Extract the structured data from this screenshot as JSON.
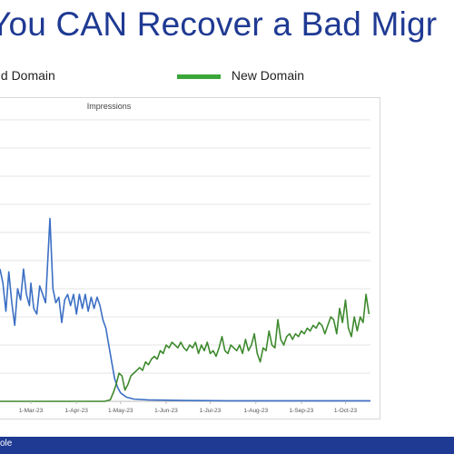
{
  "slide": {
    "title": "You CAN Recover a Bad Migr",
    "footer_text": "ole"
  },
  "legend": {
    "items": [
      {
        "label": "d Domain",
        "color": "#3b6fc4"
      },
      {
        "label": "New Domain",
        "color": "#3aa63a"
      }
    ]
  },
  "chart_data": {
    "type": "line",
    "title": "Impressions",
    "xlabel": "",
    "ylabel": "",
    "grid": true,
    "legend_position": "top",
    "x_ticks": [
      "1-Mar-23",
      "1-Apr-23",
      "1-May-23",
      "1-Jun-23",
      "1-Jul-23",
      "1-Aug-23",
      "1-Sep-23",
      "1-Oct-23"
    ],
    "x_range": [
      "2023-02-08",
      "2023-10-18"
    ],
    "y_range": [
      0,
      100
    ],
    "series": [
      {
        "name": "d Domain",
        "color": "#3b6fc4",
        "points": [
          [
            "2023-02-08",
            47
          ],
          [
            "2023-02-10",
            42
          ],
          [
            "2023-02-12",
            32
          ],
          [
            "2023-02-14",
            46
          ],
          [
            "2023-02-16",
            35
          ],
          [
            "2023-02-18",
            27
          ],
          [
            "2023-02-20",
            40
          ],
          [
            "2023-02-22",
            36
          ],
          [
            "2023-02-24",
            47
          ],
          [
            "2023-02-26",
            38
          ],
          [
            "2023-02-28",
            34
          ],
          [
            "2023-03-01",
            42
          ],
          [
            "2023-03-03",
            33
          ],
          [
            "2023-03-05",
            31
          ],
          [
            "2023-03-07",
            41
          ],
          [
            "2023-03-09",
            38
          ],
          [
            "2023-03-11",
            35
          ],
          [
            "2023-03-13",
            55
          ],
          [
            "2023-03-14",
            65
          ],
          [
            "2023-03-16",
            40
          ],
          [
            "2023-03-18",
            35
          ],
          [
            "2023-03-20",
            37
          ],
          [
            "2023-03-22",
            28
          ],
          [
            "2023-03-24",
            36
          ],
          [
            "2023-03-26",
            38
          ],
          [
            "2023-03-28",
            34
          ],
          [
            "2023-03-30",
            38
          ],
          [
            "2023-04-01",
            31
          ],
          [
            "2023-04-03",
            38
          ],
          [
            "2023-04-05",
            33
          ],
          [
            "2023-04-07",
            38
          ],
          [
            "2023-04-09",
            32
          ],
          [
            "2023-04-11",
            37
          ],
          [
            "2023-04-13",
            33
          ],
          [
            "2023-04-15",
            37
          ],
          [
            "2023-04-17",
            34
          ],
          [
            "2023-04-19",
            29
          ],
          [
            "2023-04-21",
            26
          ],
          [
            "2023-04-23",
            20
          ],
          [
            "2023-04-25",
            14
          ],
          [
            "2023-04-27",
            8
          ],
          [
            "2023-04-29",
            5
          ],
          [
            "2023-05-01",
            3
          ],
          [
            "2023-05-05",
            1.5
          ],
          [
            "2023-05-10",
            0.8
          ],
          [
            "2023-05-20",
            0.5
          ],
          [
            "2023-06-15",
            0.3
          ],
          [
            "2023-07-15",
            0.2
          ],
          [
            "2023-08-15",
            0.2
          ],
          [
            "2023-09-15",
            0.2
          ],
          [
            "2023-10-18",
            0.2
          ]
        ]
      },
      {
        "name": "New Domain",
        "color": "#3e8a2e",
        "points": [
          [
            "2023-02-08",
            0
          ],
          [
            "2023-04-20",
            0
          ],
          [
            "2023-04-24",
            0.5
          ],
          [
            "2023-04-26",
            3
          ],
          [
            "2023-04-28",
            6
          ],
          [
            "2023-04-30",
            10
          ],
          [
            "2023-05-02",
            9
          ],
          [
            "2023-05-04",
            4
          ],
          [
            "2023-05-06",
            6
          ],
          [
            "2023-05-08",
            9
          ],
          [
            "2023-05-10",
            10
          ],
          [
            "2023-05-12",
            11
          ],
          [
            "2023-05-14",
            12
          ],
          [
            "2023-05-16",
            11
          ],
          [
            "2023-05-18",
            14
          ],
          [
            "2023-05-20",
            13
          ],
          [
            "2023-05-22",
            15
          ],
          [
            "2023-05-24",
            16
          ],
          [
            "2023-05-26",
            15
          ],
          [
            "2023-05-28",
            18
          ],
          [
            "2023-05-30",
            17
          ],
          [
            "2023-06-01",
            20
          ],
          [
            "2023-06-03",
            19
          ],
          [
            "2023-06-05",
            21
          ],
          [
            "2023-06-07",
            20
          ],
          [
            "2023-06-09",
            19
          ],
          [
            "2023-06-11",
            21
          ],
          [
            "2023-06-13",
            19
          ],
          [
            "2023-06-15",
            18
          ],
          [
            "2023-06-17",
            20
          ],
          [
            "2023-06-19",
            19
          ],
          [
            "2023-06-21",
            21
          ],
          [
            "2023-06-23",
            17
          ],
          [
            "2023-06-25",
            20
          ],
          [
            "2023-06-27",
            18
          ],
          [
            "2023-06-29",
            21
          ],
          [
            "2023-07-01",
            17
          ],
          [
            "2023-07-03",
            18
          ],
          [
            "2023-07-05",
            16
          ],
          [
            "2023-07-07",
            19
          ],
          [
            "2023-07-09",
            23
          ],
          [
            "2023-07-11",
            18
          ],
          [
            "2023-07-13",
            17
          ],
          [
            "2023-07-15",
            20
          ],
          [
            "2023-07-17",
            19
          ],
          [
            "2023-07-19",
            18
          ],
          [
            "2023-07-21",
            20
          ],
          [
            "2023-07-23",
            17
          ],
          [
            "2023-07-25",
            22
          ],
          [
            "2023-07-27",
            18
          ],
          [
            "2023-07-29",
            20
          ],
          [
            "2023-07-31",
            24
          ],
          [
            "2023-08-02",
            17
          ],
          [
            "2023-08-04",
            14
          ],
          [
            "2023-08-06",
            19
          ],
          [
            "2023-08-08",
            18
          ],
          [
            "2023-08-10",
            25
          ],
          [
            "2023-08-12",
            20
          ],
          [
            "2023-08-14",
            19
          ],
          [
            "2023-08-16",
            29
          ],
          [
            "2023-08-18",
            22
          ],
          [
            "2023-08-20",
            20
          ],
          [
            "2023-08-22",
            23
          ],
          [
            "2023-08-24",
            24
          ],
          [
            "2023-08-26",
            22
          ],
          [
            "2023-08-28",
            24
          ],
          [
            "2023-08-30",
            23
          ],
          [
            "2023-09-01",
            25
          ],
          [
            "2023-09-03",
            24
          ],
          [
            "2023-09-05",
            26
          ],
          [
            "2023-09-07",
            25
          ],
          [
            "2023-09-09",
            27
          ],
          [
            "2023-09-11",
            26
          ],
          [
            "2023-09-13",
            28
          ],
          [
            "2023-09-15",
            27
          ],
          [
            "2023-09-17",
            24
          ],
          [
            "2023-09-19",
            27
          ],
          [
            "2023-09-21",
            30
          ],
          [
            "2023-09-23",
            29
          ],
          [
            "2023-09-25",
            24
          ],
          [
            "2023-09-27",
            33
          ],
          [
            "2023-09-29",
            28
          ],
          [
            "2023-10-01",
            36
          ],
          [
            "2023-10-03",
            26
          ],
          [
            "2023-10-05",
            23
          ],
          [
            "2023-10-07",
            30
          ],
          [
            "2023-10-09",
            25
          ],
          [
            "2023-10-11",
            30
          ],
          [
            "2023-10-13",
            28
          ],
          [
            "2023-10-15",
            38
          ],
          [
            "2023-10-17",
            31
          ]
        ]
      }
    ]
  }
}
